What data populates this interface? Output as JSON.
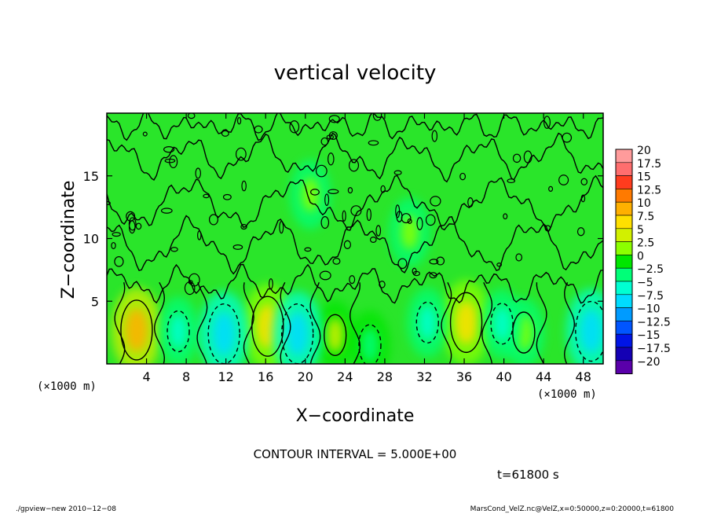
{
  "chart_data": {
    "type": "heatmap",
    "title": "vertical velocity",
    "xlabel": "X−coordinate",
    "ylabel": "Z−coordinate",
    "x_unit_left": "(×1000 m)",
    "x_unit_right": "(×1000 m)",
    "xlim": [
      0,
      50
    ],
    "ylim": [
      0,
      20
    ],
    "x_ticks": [
      4,
      8,
      12,
      16,
      20,
      24,
      28,
      32,
      36,
      40,
      44,
      48
    ],
    "y_ticks": [
      5,
      10,
      15
    ],
    "colorbar": {
      "labels": [
        "20",
        "17.5",
        "15",
        "12.5",
        "10",
        "7.5",
        "5",
        "2.5",
        "0",
        "−2.5",
        "−5",
        "−7.5",
        "−10",
        "−12.5",
        "−15",
        "−17.5",
        "−20"
      ],
      "colors": [
        "#ff9b9b",
        "#ff6e6e",
        "#ff3c1e",
        "#ff7a00",
        "#ffb000",
        "#ffe000",
        "#d2f000",
        "#8cff00",
        "#00e600",
        "#00ff78",
        "#00ffd2",
        "#00dcff",
        "#009bff",
        "#0055ff",
        "#0014e6",
        "#1400b4",
        "#5a00aa"
      ]
    },
    "features": [
      {
        "x": 3.0,
        "z": 2.7,
        "value": 10
      },
      {
        "x": 16.2,
        "z": 3.0,
        "value": 7.5
      },
      {
        "x": 23.0,
        "z": 2.3,
        "value": 5
      },
      {
        "x": 36.2,
        "z": 3.3,
        "value": 7.5
      },
      {
        "x": 42.0,
        "z": 2.5,
        "value": 2.5
      },
      {
        "x": 7.2,
        "z": 2.6,
        "value": -5
      },
      {
        "x": 11.8,
        "z": 2.4,
        "value": -7.5
      },
      {
        "x": 19.2,
        "z": 2.4,
        "value": -7.5
      },
      {
        "x": 26.5,
        "z": 1.5,
        "value": -2.5
      },
      {
        "x": 32.3,
        "z": 3.3,
        "value": -5
      },
      {
        "x": 39.8,
        "z": 3.2,
        "value": -5
      },
      {
        "x": 48.8,
        "z": 2.6,
        "value": -7.5
      },
      {
        "x": 30.5,
        "z": 10.5,
        "value": 2.5
      },
      {
        "x": 20.5,
        "z": 13.5,
        "value": 2.5
      }
    ]
  },
  "contour_interval_text": "CONTOUR INTERVAL = 5.000E+00",
  "time_text": "t=61800 s",
  "footer_left": "./gpview−new 2010−12−08",
  "footer_right": "MarsCond_VelZ.nc@VelZ,x=0:50000,z=0:20000,t=61800"
}
